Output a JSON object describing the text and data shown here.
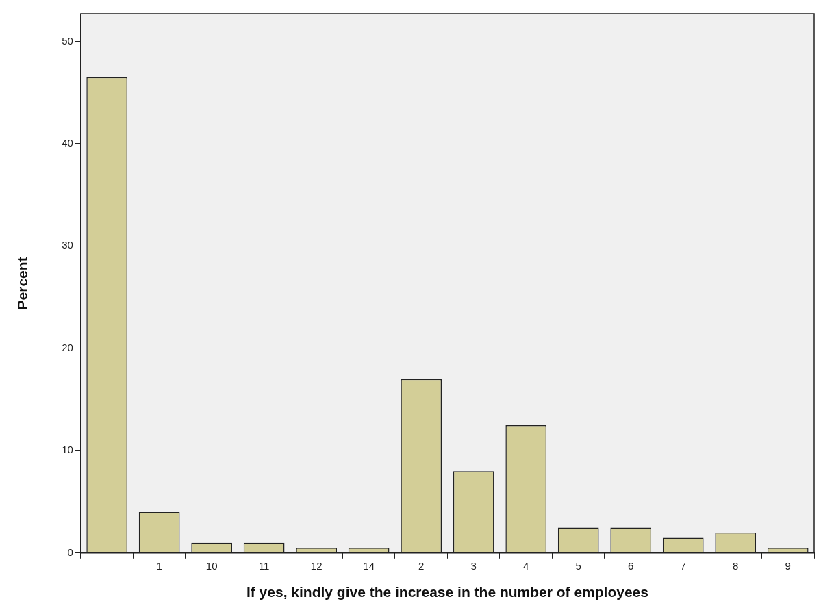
{
  "chart_data": {
    "type": "bar",
    "xlabel": "If yes, kindly give the increase in the number of employees",
    "ylabel": "Percent",
    "categories": [
      null,
      "1",
      "10",
      "11",
      "12",
      "14",
      "2",
      "3",
      "4",
      "5",
      "6",
      "7",
      "8",
      "9"
    ],
    "values": [
      46.5,
      4.0,
      1.0,
      1.0,
      0.5,
      0.5,
      17.0,
      8.0,
      12.5,
      2.5,
      2.5,
      1.5,
      2.0,
      0.5
    ],
    "color": "#d3ce97",
    "ylim": [
      0,
      52.7
    ],
    "yticks": [
      0,
      10,
      20,
      30,
      40,
      50
    ],
    "grid": false,
    "legend": false
  }
}
